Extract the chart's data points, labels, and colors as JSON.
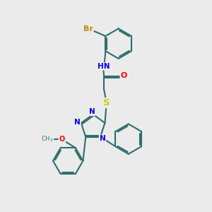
{
  "background_color": "#ebebeb",
  "bond_color": "#2d6e6e",
  "bond_width": 1.5,
  "atom_colors": {
    "Br": "#cc8800",
    "N": "#0000dd",
    "O": "#ff0000",
    "S": "#cccc00",
    "C": "#2d6e6e"
  },
  "font_size": 8,
  "fig_width": 3.0,
  "fig_height": 3.0,
  "dpi": 100,
  "ring_r": 0.72
}
